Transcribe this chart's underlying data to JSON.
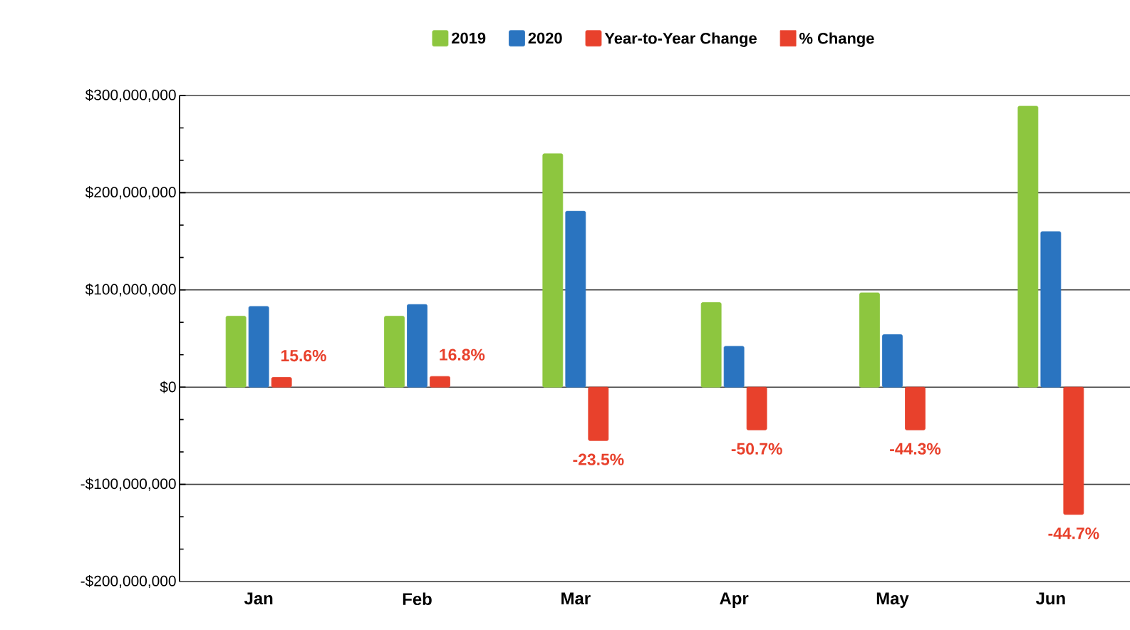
{
  "chart_data": {
    "type": "bar",
    "categories": [
      "Jan",
      "Feb",
      "Mar",
      "Apr",
      "May",
      "Jun"
    ],
    "series": [
      {
        "name": "2019",
        "color": "#8dc63f",
        "values": [
          73000000,
          73000000,
          240000000,
          87000000,
          97000000,
          289000000
        ]
      },
      {
        "name": "2020",
        "color": "#2a74c0",
        "values": [
          83000000,
          85000000,
          181000000,
          42000000,
          54000000,
          160000000
        ]
      },
      {
        "name": "Year-to-Year Change",
        "color": "#e8412c",
        "values": [
          10000000,
          11000000,
          -55000000,
          -44000000,
          -44000000,
          -131000000
        ]
      },
      {
        "name": "% Change",
        "color": "#e8412c",
        "values": [
          null,
          null,
          null,
          null,
          null,
          null
        ],
        "value_labels": [
          "15.6%",
          "16.8%",
          "-23.5%",
          "-50.7%",
          "-44.3%",
          "-44.7%"
        ]
      }
    ],
    "ylim": [
      -200000000,
      300000000
    ],
    "yticks": [
      {
        "value": -200000000,
        "label": "-$200,000,000"
      },
      {
        "value": -100000000,
        "label": "-$100,000,000"
      },
      {
        "value": 0,
        "label": "$0"
      },
      {
        "value": 100000000,
        "label": "$100,000,000"
      },
      {
        "value": 200000000,
        "label": "$200,000,000"
      },
      {
        "value": 300000000,
        "label": "$300,000,000"
      }
    ],
    "grid": "y",
    "legend": "top"
  }
}
